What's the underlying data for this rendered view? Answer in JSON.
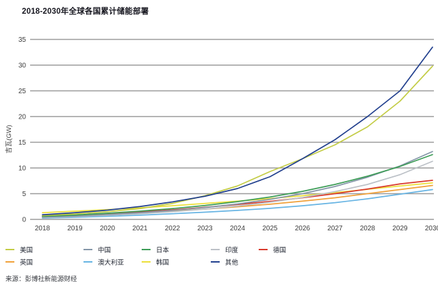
{
  "title": "2018-2030年全球各国累计储能部署",
  "source": "来源：彭博社新能源财经",
  "chart_data": {
    "type": "line",
    "title": "2018-2030年全球各国累计储能部署",
    "xlabel": "",
    "ylabel": "吉瓦(GW)",
    "ylim": [
      0,
      35
    ],
    "yticks": [
      0,
      5,
      10,
      15,
      20,
      25,
      30,
      35
    ],
    "grid": "horizontal-only",
    "grid_color": "#9b9b9b",
    "legend_position": "bottom",
    "x": [
      "2018",
      "2019",
      "2020",
      "2021",
      "2022",
      "2023",
      "2024",
      "2025",
      "2026",
      "2027",
      "2028",
      "2029",
      "2030"
    ],
    "series": [
      {
        "key": "korea",
        "name": "韩国",
        "color": "#ecdf3a",
        "values": [
          1.3,
          1.6,
          1.9,
          2.25,
          2.65,
          3.1,
          3.55,
          4.05,
          4.6,
          5.2,
          5.85,
          6.5,
          7.1
        ]
      },
      {
        "key": "germany",
        "name": "德国",
        "color": "#d9392c",
        "values": [
          0.55,
          0.8,
          1.1,
          1.45,
          1.85,
          2.35,
          2.9,
          3.5,
          4.2,
          5.0,
          5.9,
          6.9,
          7.6
        ]
      },
      {
        "key": "uk",
        "name": "英国",
        "color": "#f0a13a",
        "values": [
          0.5,
          0.7,
          0.95,
          1.25,
          1.6,
          2.0,
          2.45,
          2.95,
          3.55,
          4.2,
          5.0,
          5.8,
          6.6
        ]
      },
      {
        "key": "australia",
        "name": "澳大利亚",
        "color": "#67b4e3",
        "values": [
          0.25,
          0.4,
          0.6,
          0.82,
          1.1,
          1.4,
          1.75,
          2.15,
          2.65,
          3.25,
          4.0,
          4.9,
          5.8
        ]
      },
      {
        "key": "india",
        "name": "印度",
        "color": "#bcc1c7",
        "values": [
          0.35,
          0.55,
          0.8,
          1.1,
          1.5,
          2.0,
          2.6,
          3.35,
          4.25,
          5.4,
          6.8,
          8.7,
          11.3
        ]
      },
      {
        "key": "china",
        "name": "中国",
        "color": "#8496a8",
        "values": [
          0.45,
          0.65,
          0.95,
          1.3,
          1.75,
          2.3,
          3.0,
          3.9,
          5.0,
          6.4,
          8.2,
          10.4,
          13.2
        ]
      },
      {
        "key": "japan",
        "name": "日本",
        "color": "#3d9c57",
        "values": [
          0.6,
          0.85,
          1.2,
          1.6,
          2.1,
          2.7,
          3.45,
          4.35,
          5.45,
          6.8,
          8.4,
          10.3,
          12.6
        ]
      },
      {
        "key": "us",
        "name": "美国",
        "color": "#c3cc45",
        "values": [
          0.75,
          1.05,
          1.5,
          2.1,
          3.1,
          4.6,
          6.5,
          9.3,
          11.8,
          14.5,
          18.0,
          23.0,
          29.8
        ]
      },
      {
        "key": "others",
        "name": "其他",
        "color": "#22408e",
        "values": [
          0.9,
          1.3,
          1.8,
          2.5,
          3.4,
          4.5,
          6.0,
          8.3,
          11.8,
          15.5,
          20.0,
          25.0,
          33.5
        ]
      }
    ],
    "legend_rows": [
      [
        "us",
        "china",
        "japan",
        "india",
        "germany"
      ],
      [
        "uk",
        "australia",
        "korea",
        "others"
      ]
    ]
  }
}
